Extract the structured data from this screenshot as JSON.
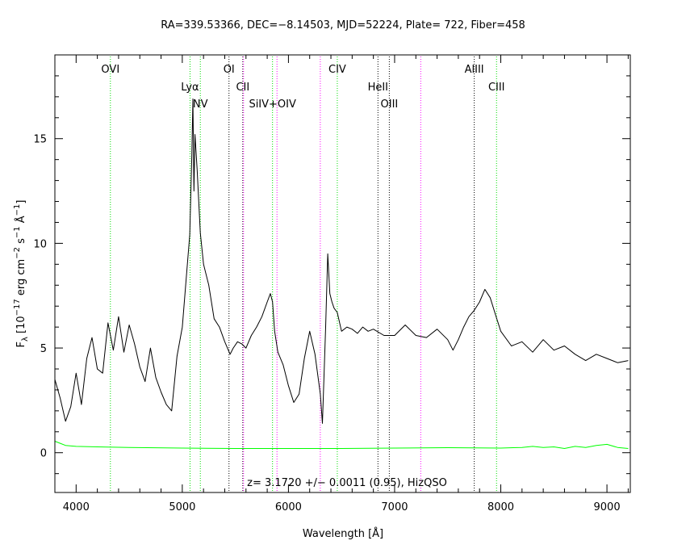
{
  "chart_data": {
    "type": "line",
    "title": "RA=339.53366, DEC=−8.14503, MJD=52224, Plate= 722, Fiber=458",
    "xlabel": "Wavelength [Å]",
    "ylabel": {
      "main": "F",
      "sub": "λ",
      "rest": " [10",
      "sup1": "−17",
      "unit1": " erg cm",
      "sup2": "−2",
      "unit2": " s",
      "sup3": "−1",
      "unit3": " Å",
      "sup4": "−1",
      "close": "]"
    },
    "annotation": "z= 3.1720 +/− 0.0011 (0.95), HizQSO",
    "xlim": [
      3800,
      9220
    ],
    "ylim": [
      -1.9,
      19.0
    ],
    "x_ticks": [
      4000,
      5000,
      6000,
      7000,
      8000,
      9000
    ],
    "y_ticks": [
      0,
      5,
      10,
      15
    ],
    "grid": false,
    "colors": {
      "spectrum": "#000000",
      "error": "#00ff00",
      "line_emission": "#00dd00",
      "line_absorption": "#000000",
      "line_sky": "#ff00ff",
      "axis": "#000000"
    },
    "spectral_lines": [
      {
        "name": "OVI",
        "wavelength": 4323,
        "kind": "emission",
        "label_row": 0
      },
      {
        "name": "Lyα",
        "wavelength": 5073,
        "kind": "emission",
        "label_row": 1
      },
      {
        "name": "NV",
        "wavelength": 5170,
        "kind": "emission",
        "label_row": 2
      },
      {
        "name": "OI",
        "wavelength": 5440,
        "kind": "absorption",
        "label_row": 0
      },
      {
        "name": "CII",
        "wavelength": 5570,
        "kind": "absorption",
        "label_row": 1
      },
      {
        "name": "",
        "wavelength": 5577,
        "kind": "sky",
        "label_row": 0
      },
      {
        "name": "SiIV+OIV",
        "wavelength": 5850,
        "kind": "emission",
        "label_row": 2
      },
      {
        "name": "",
        "wavelength": 5892,
        "kind": "sky",
        "label_row": 0
      },
      {
        "name": "",
        "wavelength": 6300,
        "kind": "sky",
        "label_row": 0
      },
      {
        "name": "CIV",
        "wavelength": 6460,
        "kind": "emission",
        "label_row": 0
      },
      {
        "name": "HeII",
        "wavelength": 6843,
        "kind": "absorption",
        "label_row": 1
      },
      {
        "name": "OIII",
        "wavelength": 6950,
        "kind": "absorption",
        "label_row": 2
      },
      {
        "name": "",
        "wavelength": 7246,
        "kind": "sky",
        "label_row": 0
      },
      {
        "name": "AlIII",
        "wavelength": 7750,
        "kind": "absorption",
        "label_row": 0
      },
      {
        "name": "CIII",
        "wavelength": 7960,
        "kind": "emission",
        "label_row": 1
      }
    ],
    "series": [
      {
        "kind": "flux",
        "x": [
          3800,
          3850,
          3900,
          3950,
          4000,
          4050,
          4100,
          4150,
          4200,
          4250,
          4300,
          4350,
          4400,
          4450,
          4500,
          4550,
          4600,
          4650,
          4700,
          4750,
          4800,
          4850,
          4900,
          4950,
          5000,
          5040,
          5070,
          5090,
          5100,
          5110,
          5120,
          5140,
          5170,
          5200,
          5250,
          5300,
          5350,
          5400,
          5450,
          5480,
          5520,
          5560,
          5600,
          5650,
          5700,
          5750,
          5800,
          5830,
          5850,
          5870,
          5900,
          5950,
          6000,
          6050,
          6100,
          6150,
          6200,
          6250,
          6300,
          6320,
          6350,
          6370,
          6390,
          6410,
          6430,
          6460,
          6500,
          6550,
          6600,
          6650,
          6700,
          6750,
          6800,
          6900,
          7000,
          7100,
          7200,
          7300,
          7400,
          7500,
          7550,
          7600,
          7650,
          7700,
          7750,
          7800,
          7850,
          7900,
          7950,
          8000,
          8100,
          8200,
          8300,
          8400,
          8500,
          8600,
          8700,
          8800,
          8900,
          9000,
          9100,
          9200
        ],
        "y": [
          3.5,
          2.6,
          1.5,
          2.2,
          3.8,
          2.3,
          4.5,
          5.5,
          4.0,
          3.8,
          6.2,
          4.9,
          6.5,
          4.8,
          6.1,
          5.2,
          4.1,
          3.4,
          5.0,
          3.6,
          2.9,
          2.3,
          2.0,
          4.6,
          6.0,
          8.5,
          10.4,
          14.2,
          16.9,
          12.5,
          15.2,
          13.5,
          10.5,
          9.0,
          8.0,
          6.4,
          6.0,
          5.3,
          4.7,
          5.0,
          5.3,
          5.2,
          5.0,
          5.6,
          6.0,
          6.5,
          7.2,
          7.6,
          7.2,
          5.8,
          4.8,
          4.2,
          3.2,
          2.4,
          2.8,
          4.5,
          5.8,
          4.7,
          2.8,
          1.4,
          6.0,
          9.5,
          7.6,
          7.2,
          6.9,
          6.7,
          5.8,
          6.0,
          5.9,
          5.7,
          6.0,
          5.8,
          5.9,
          5.6,
          5.6,
          6.1,
          5.6,
          5.5,
          5.9,
          5.4,
          4.9,
          5.4,
          6.0,
          6.5,
          6.8,
          7.2,
          7.8,
          7.4,
          6.6,
          5.8,
          5.1,
          5.3,
          4.8,
          5.4,
          4.9,
          5.1,
          4.7,
          4.4,
          4.7,
          4.5,
          4.3,
          4.4
        ]
      },
      {
        "kind": "error",
        "x": [
          3800,
          3850,
          3900,
          4000,
          4200,
          4500,
          5000,
          5500,
          6000,
          6500,
          7000,
          7500,
          8000,
          8200,
          8300,
          8400,
          8500,
          8600,
          8700,
          8800,
          8900,
          9000,
          9100,
          9200
        ],
        "y": [
          0.55,
          0.45,
          0.35,
          0.3,
          0.28,
          0.25,
          0.22,
          0.2,
          0.2,
          0.2,
          0.22,
          0.24,
          0.22,
          0.25,
          0.3,
          0.25,
          0.28,
          0.2,
          0.3,
          0.25,
          0.35,
          0.4,
          0.25,
          0.2
        ]
      }
    ]
  }
}
